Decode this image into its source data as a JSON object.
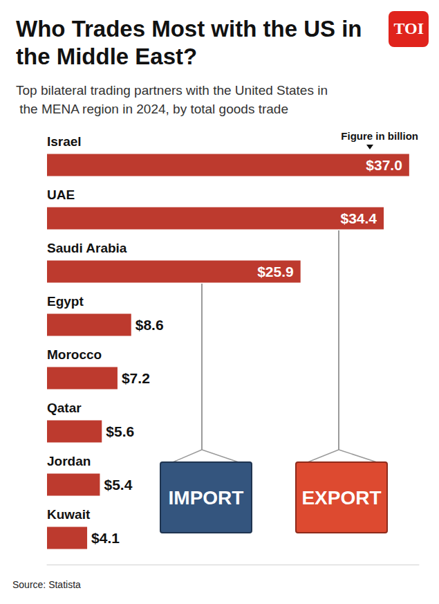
{
  "chart_data": {
    "type": "bar",
    "orientation": "horizontal",
    "title": "Who Trades Most with the US in the Middle East?",
    "subtitle": "Top bilateral trading partners with the United States in the MENA region in 2024, by total goods trade",
    "note": "Figure in billion",
    "source": "Source: Statista",
    "logo": "TOI",
    "illustration_labels": [
      "IMPORT",
      "EXPORT"
    ],
    "categories": [
      "Israel",
      "UAE",
      "Saudi Arabia",
      "Egypt",
      "Morocco",
      "Qatar",
      "Jordan",
      "Kuwait"
    ],
    "values": [
      37.0,
      34.4,
      25.9,
      8.6,
      7.2,
      5.6,
      5.4,
      4.1
    ],
    "value_labels": [
      "$37.0",
      "$34.4",
      "$25.9",
      "$8.6",
      "$7.2",
      "$5.6",
      "$5.4",
      "$4.1"
    ],
    "color": "#bd3a2e",
    "xlim": [
      0,
      38
    ],
    "xticks": [],
    "grid": false,
    "data_labels": true,
    "tick_labels": false
  }
}
